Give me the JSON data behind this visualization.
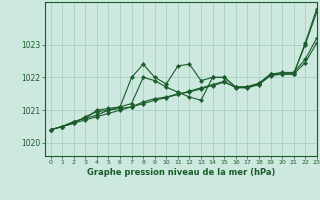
{
  "background_color": "#cce8df",
  "grid_color": "#aacfc5",
  "line_color": "#1a5c2a",
  "xlim": [
    -0.5,
    23
  ],
  "ylim": [
    1019.6,
    1024.3
  ],
  "yticks": [
    1020,
    1021,
    1022,
    1023
  ],
  "xticks": [
    0,
    1,
    2,
    3,
    4,
    5,
    6,
    7,
    8,
    9,
    10,
    11,
    12,
    13,
    14,
    15,
    16,
    17,
    18,
    19,
    20,
    21,
    22,
    23
  ],
  "xlabel": "Graphe pression niveau de la mer (hPa)",
  "series": [
    [
      1020.4,
      1020.5,
      1020.65,
      1020.75,
      1020.85,
      1021.0,
      1021.05,
      1021.1,
      1021.25,
      1021.35,
      1021.4,
      1021.5,
      1021.55,
      1021.65,
      1021.75,
      1021.85,
      1021.7,
      1021.72,
      1021.82,
      1022.1,
      1022.15,
      1022.15,
      1022.55,
      1023.2
    ],
    [
      1020.4,
      1020.5,
      1020.6,
      1020.7,
      1020.8,
      1020.9,
      1021.0,
      1021.1,
      1021.2,
      1021.3,
      1021.38,
      1021.48,
      1021.58,
      1021.68,
      1021.78,
      1021.88,
      1021.68,
      1021.68,
      1021.78,
      1022.05,
      1022.1,
      1022.1,
      1022.45,
      1023.05
    ],
    [
      1020.4,
      1020.5,
      1020.6,
      1020.8,
      1020.95,
      1021.0,
      1021.1,
      1021.2,
      1022.0,
      1021.9,
      1021.7,
      1021.55,
      1021.4,
      1021.3,
      1022.0,
      1022.0,
      1021.7,
      1021.7,
      1021.8,
      1022.1,
      1022.1,
      1022.1,
      1023.0,
      1024.0
    ],
    [
      1020.4,
      1020.5,
      1020.65,
      1020.75,
      1021.0,
      1021.05,
      1021.1,
      1022.0,
      1022.4,
      1022.0,
      1021.8,
      1022.35,
      1022.4,
      1021.9,
      1022.0,
      1022.0,
      1021.7,
      1021.7,
      1021.8,
      1022.1,
      1022.1,
      1022.1,
      1023.05,
      1024.1
    ]
  ]
}
